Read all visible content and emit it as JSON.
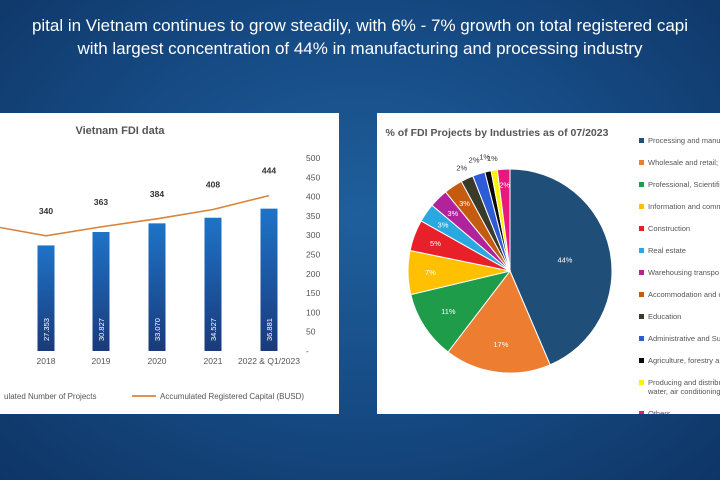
{
  "slide": {
    "title_line1": "pital in Vietnam continues to grow steadily, with 6% - 7% growth on total registered capi",
    "title_line2": "with largest concentration of 44% in manufacturing and processing industry"
  },
  "colors": {
    "background": "#174d87",
    "bar_top": "#1e73c8",
    "bar_bottom": "#1a3a7a",
    "line": "#d8843a",
    "axis_text": "#555555"
  },
  "chart_data": [
    {
      "type": "bar+line",
      "title": "Vietnam FDI data",
      "categories": [
        "",
        "2018",
        "2019",
        "2020",
        "2021",
        "2022 & Q1/2023"
      ],
      "series": [
        {
          "name": "ulated Number of Projects",
          "kind": "bar",
          "axis": "left",
          "values": [
            null,
            27353,
            30827,
            33070,
            34527,
            36881
          ],
          "labels": [
            "",
            "27.353",
            "30.827",
            "33.070",
            "34.527",
            "36.881"
          ]
        },
        {
          "name": "Accumulated Registered Capital (BUSD)",
          "kind": "line",
          "axis": "right",
          "values": [
            null,
            340,
            363,
            384,
            408,
            444
          ],
          "labels": [
            "",
            "340",
            "363",
            "384",
            "408",
            "444"
          ]
        }
      ],
      "line_start_value": 320,
      "right_axis": {
        "ticks": [
          "500",
          "450",
          "400",
          "350",
          "300",
          "250",
          "200",
          "150",
          "100",
          "50",
          "-"
        ],
        "range": [
          0,
          500
        ]
      },
      "left_axis_range": [
        0,
        50000
      ]
    },
    {
      "type": "pie",
      "title": "% of FDI Projects by Industries as of 07/2023",
      "slices": [
        {
          "label": "Processing and manuf",
          "value": 44,
          "display": "44%",
          "color": "#1f4e79"
        },
        {
          "label": "Wholesale and retail; \\",
          "value": 17,
          "display": "17%",
          "color": "#ed7d31"
        },
        {
          "label": "Professional, Scientific",
          "value": 11,
          "display": "11%",
          "color": "#1e9c4a"
        },
        {
          "label": "Information and comm",
          "value": 7,
          "display": "7%",
          "color": "#ffc000"
        },
        {
          "label": "Construction",
          "value": 5,
          "display": "5%",
          "color": "#e8202a"
        },
        {
          "label": "Real estate",
          "value": 3,
          "display": "3%",
          "color": "#29a9e0"
        },
        {
          "label": "Warehousing transpo",
          "value": 3,
          "display": "3%",
          "color": "#b0239a"
        },
        {
          "label": "Accommodation and c",
          "value": 3,
          "display": "3%",
          "color": "#c55a11"
        },
        {
          "label": "Education",
          "value": 2,
          "display": "2%",
          "color": "#3a3a2a"
        },
        {
          "label": "Administrative and Su",
          "value": 2,
          "display": "2%",
          "color": "#2e5cd6"
        },
        {
          "label": "Agriculture, forestry a",
          "value": 1,
          "display": "1%",
          "color": "#0a0a0a"
        },
        {
          "label": "Producing and distribu water, air conditioning",
          "value": 1,
          "display": "1%",
          "color": "#fff200"
        },
        {
          "label": "Others",
          "value": 2,
          "display": "2%",
          "color": "#e8187c"
        }
      ]
    }
  ]
}
